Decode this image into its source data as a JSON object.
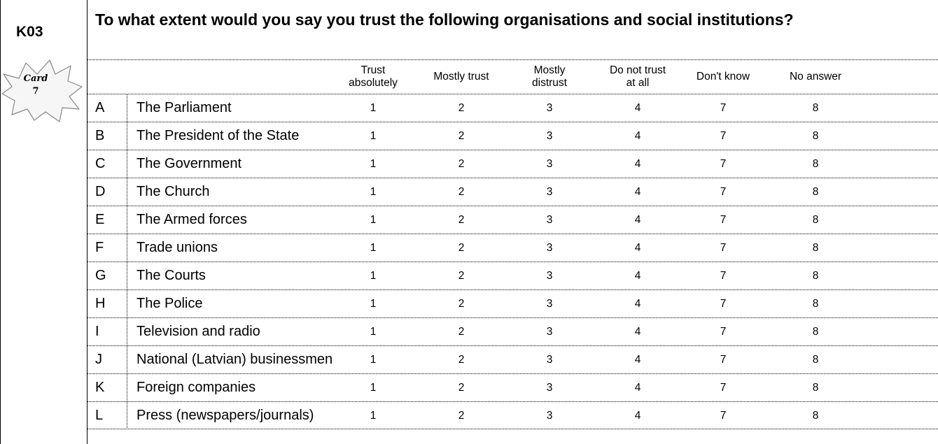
{
  "question_id": "K03",
  "card": {
    "label": "Card",
    "number": "7"
  },
  "question_text": "To what extent would you say you trust the following organisations and social institutions?",
  "columns": [
    "Trust\nabsolutely",
    "Mostly trust",
    "Mostly\ndistrust",
    "Do not trust\nat all",
    "Don't know",
    "No answer"
  ],
  "option_codes": [
    "1",
    "2",
    "3",
    "4",
    "7",
    "8"
  ],
  "items": [
    {
      "code": "A",
      "label": "The Parliament"
    },
    {
      "code": "B",
      "label": "The President of the State"
    },
    {
      "code": "C",
      "label": "The Government"
    },
    {
      "code": "D",
      "label": "The Church"
    },
    {
      "code": "E",
      "label": "The Armed forces"
    },
    {
      "code": "F",
      "label": "Trade unions"
    },
    {
      "code": "G",
      "label": "The Courts"
    },
    {
      "code": "H",
      "label": "The Police"
    },
    {
      "code": "I",
      "label": "Television and radio"
    },
    {
      "code": "J",
      "label": "National (Latvian) businessmen"
    },
    {
      "code": "K",
      "label": "Foreign companies"
    },
    {
      "code": "L",
      "label": "Press (newspapers/journals)"
    }
  ]
}
